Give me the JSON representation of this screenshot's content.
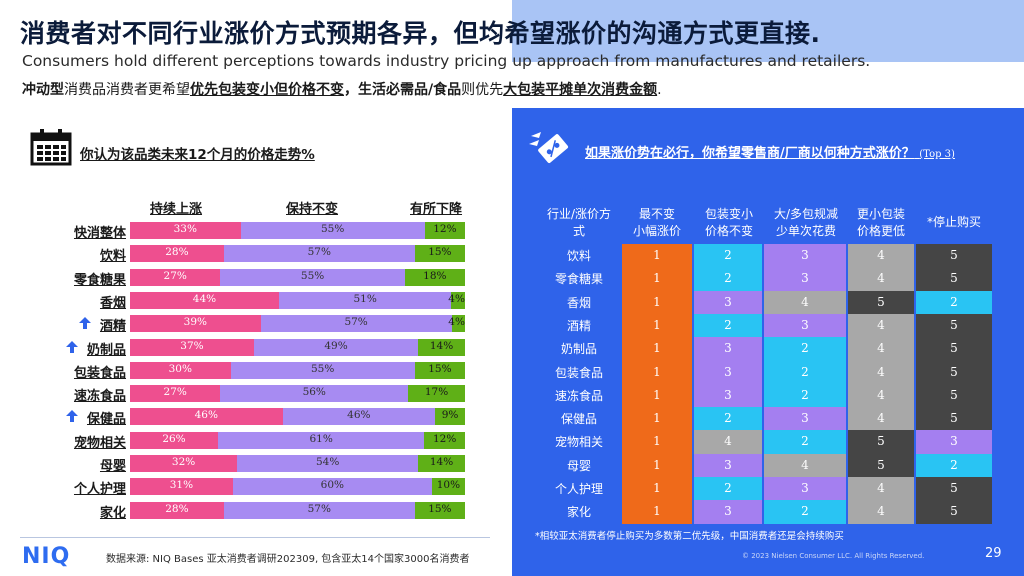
{
  "header": {
    "title": "消费者对不同行业涨价方式预期各异，但均希望涨价的沟通方式更直接.",
    "subtitle": "Consumers hold different perceptions towards industry pricing up approach from manufactures and retailers.",
    "summary": {
      "p1": "冲动型",
      "p2": "消费品消费者更希望",
      "p3": "优先包装变小但价格不变",
      "p4": "，生活必需品/食品",
      "p5": "则优先",
      "p6": "大包装平摊单次消费金额",
      "p7": "."
    }
  },
  "left": {
    "question": "你认为该品类未来12个月的价格走势%",
    "columns": [
      "持续上涨",
      "保持不变",
      "有所下降"
    ],
    "rows": [
      {
        "label": "快消整体",
        "up": 33,
        "same": 55,
        "down": 12,
        "arrow": false
      },
      {
        "label": "饮料",
        "up": 28,
        "same": 57,
        "down": 15,
        "arrow": false
      },
      {
        "label": "零食糖果",
        "up": 27,
        "same": 55,
        "down": 18,
        "arrow": false
      },
      {
        "label": "香烟",
        "up": 44,
        "same": 51,
        "down": 4,
        "arrow": false
      },
      {
        "label": "酒精",
        "up": 39,
        "same": 57,
        "down": 4,
        "arrow": true
      },
      {
        "label": "奶制品",
        "up": 37,
        "same": 49,
        "down": 14,
        "arrow": true
      },
      {
        "label": "包装食品",
        "up": 30,
        "same": 55,
        "down": 15,
        "arrow": false
      },
      {
        "label": "速冻食品",
        "up": 27,
        "same": 56,
        "down": 17,
        "arrow": false
      },
      {
        "label": "保健品",
        "up": 46,
        "same": 46,
        "down": 9,
        "arrow": true
      },
      {
        "label": "宠物相关",
        "up": 26,
        "same": 61,
        "down": 12,
        "arrow": false
      },
      {
        "label": "母婴",
        "up": 32,
        "same": 54,
        "down": 14,
        "arrow": false
      },
      {
        "label": "个人护理",
        "up": 31,
        "same": 60,
        "down": 10,
        "arrow": false
      },
      {
        "label": "家化",
        "up": 28,
        "same": 57,
        "down": 15,
        "arrow": false
      }
    ],
    "colors": {
      "up": "#ee4f8f",
      "same": "#a78bf2",
      "down": "#5fb017"
    }
  },
  "footer": {
    "logo": "NIQ",
    "source": "数据来源: NIQ Bases 亚太消费者调研202309, 包含亚太14个国家3000名消费者",
    "copyright": "© 2023 Nielsen Consumer LLC. All Rights Reserved.",
    "page": "29"
  },
  "right": {
    "question": "如果涨价势在必行，你希望零售商/厂商以何种方式涨价？",
    "question_suffix": "(Top 3)",
    "headers": [
      "行业/涨价方式",
      "最不变小幅涨价",
      "包装变小价格不变",
      "大/多包规减少单次花费",
      "更小包装价格更低",
      "*停止购买"
    ],
    "headers_lines": [
      [
        "行业/涨价方",
        "式"
      ],
      [
        "最不变",
        "小幅涨价"
      ],
      [
        "包装变小",
        "价格不变"
      ],
      [
        "大/多包规减",
        "少单次花费"
      ],
      [
        "更小包装",
        "价格更低"
      ],
      [
        "*停止购买"
      ]
    ],
    "rows": [
      {
        "label": "饮料",
        "ranks": [
          1,
          2,
          3,
          4,
          5
        ]
      },
      {
        "label": "零食糖果",
        "ranks": [
          1,
          2,
          3,
          4,
          5
        ]
      },
      {
        "label": "香烟",
        "ranks": [
          1,
          3,
          4,
          5,
          2
        ]
      },
      {
        "label": "酒精",
        "ranks": [
          1,
          2,
          3,
          4,
          5
        ]
      },
      {
        "label": "奶制品",
        "ranks": [
          1,
          3,
          2,
          4,
          5
        ]
      },
      {
        "label": "包装食品",
        "ranks": [
          1,
          3,
          2,
          4,
          5
        ]
      },
      {
        "label": "速冻食品",
        "ranks": [
          1,
          3,
          2,
          4,
          5
        ]
      },
      {
        "label": "保健品",
        "ranks": [
          1,
          2,
          3,
          4,
          5
        ]
      },
      {
        "label": "宠物相关",
        "ranks": [
          1,
          4,
          2,
          5,
          3
        ]
      },
      {
        "label": "母婴",
        "ranks": [
          1,
          3,
          4,
          5,
          2
        ]
      },
      {
        "label": "个人护理",
        "ranks": [
          1,
          2,
          3,
          4,
          5
        ]
      },
      {
        "label": "家化",
        "ranks": [
          1,
          3,
          2,
          4,
          5
        ]
      }
    ],
    "rank_colors": {
      "1": "#ef6a1a",
      "2": "#29c4f3",
      "3": "#a47ff0",
      "4": "#a8a8a8",
      "5": "#454545"
    },
    "note": "*相较亚太消费者停止购买为多数第二优先级，中国消费者还是会持续购买"
  },
  "icons": [
    "calendar-icon",
    "up-arrow-icon",
    "flying-ticket-icon"
  ]
}
